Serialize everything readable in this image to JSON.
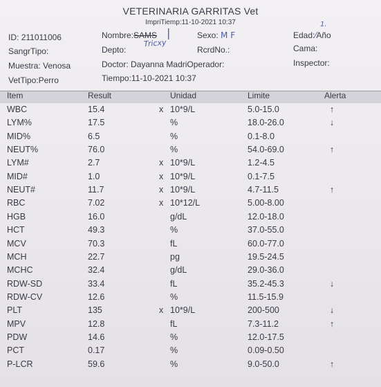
{
  "header": {
    "title": "VETERINARIA GARRITAS  Vet",
    "print_time": "ImpriTiemp:11-10-2021 10:37"
  },
  "patient": {
    "id_label": "ID:",
    "id_value": "211011006",
    "name_label": "Nombre:",
    "name_value": "SAMS",
    "name_handwritten": "Tricxy",
    "sex_label": "Sexo:",
    "sex_value": "M F",
    "age_label": "Edad:",
    "age_value": "Año",
    "age_handwritten": "1.",
    "blood_type_label": "SangrTipo:",
    "dept_label": "Depto:",
    "record_label": "RcrdNo.:",
    "bed_label": "Cama:",
    "sample_label": "Muestra:",
    "sample_value": "Venosa",
    "doctor_label": "Doctor:",
    "doctor_value": "Dayanna MadriOperador:",
    "inspector_label": "Inspector:",
    "vet_type_label": "VetTipo:",
    "vet_type_value": "Perro",
    "time_label": "Tiempo:",
    "time_value": "11-10-2021 10:37"
  },
  "table": {
    "columns": {
      "item": "Item",
      "result": "Result",
      "unit": "Unidad",
      "limit": "Limite",
      "alert": "Alerta"
    },
    "rows": [
      {
        "item": "WBC",
        "result": "15.4",
        "x": "x",
        "unit": "10*9/L",
        "limit": "5.0-15.0",
        "alert": "↑"
      },
      {
        "item": "LYM%",
        "result": "17.5",
        "x": "",
        "unit": "%",
        "limit": "18.0-26.0",
        "alert": "↓"
      },
      {
        "item": "MID%",
        "result": "6.5",
        "x": "",
        "unit": "%",
        "limit": "0.1-8.0",
        "alert": ""
      },
      {
        "item": "NEUT%",
        "result": "76.0",
        "x": "",
        "unit": "%",
        "limit": "54.0-69.0",
        "alert": "↑"
      },
      {
        "item": "LYM#",
        "result": "2.7",
        "x": "x",
        "unit": "10*9/L",
        "limit": "1.2-4.5",
        "alert": ""
      },
      {
        "item": "MID#",
        "result": "1.0",
        "x": "x",
        "unit": "10*9/L",
        "limit": "0.1-7.5",
        "alert": ""
      },
      {
        "item": "NEUT#",
        "result": "11.7",
        "x": "x",
        "unit": "10*9/L",
        "limit": "4.7-11.5",
        "alert": "↑"
      },
      {
        "item": "RBC",
        "result": "7.02",
        "x": "x",
        "unit": "10*12/L",
        "limit": "5.00-8.00",
        "alert": ""
      },
      {
        "item": "HGB",
        "result": "16.0",
        "x": "",
        "unit": "g/dL",
        "limit": "12.0-18.0",
        "alert": ""
      },
      {
        "item": "HCT",
        "result": "49.3",
        "x": "",
        "unit": "%",
        "limit": "37.0-55.0",
        "alert": ""
      },
      {
        "item": "MCV",
        "result": "70.3",
        "x": "",
        "unit": "fL",
        "limit": "60.0-77.0",
        "alert": ""
      },
      {
        "item": "MCH",
        "result": "22.7",
        "x": "",
        "unit": "pg",
        "limit": "19.5-24.5",
        "alert": ""
      },
      {
        "item": "MCHC",
        "result": "32.4",
        "x": "",
        "unit": "g/dL",
        "limit": "29.0-36.0",
        "alert": ""
      },
      {
        "item": "RDW-SD",
        "result": "33.4",
        "x": "",
        "unit": "fL",
        "limit": "35.2-45.3",
        "alert": "↓"
      },
      {
        "item": "RDW-CV",
        "result": "12.6",
        "x": "",
        "unit": "%",
        "limit": "11.5-15.9",
        "alert": ""
      },
      {
        "item": "PLT",
        "result": "135",
        "x": "x",
        "unit": "10*9/L",
        "limit": "200-500",
        "alert": "↓"
      },
      {
        "item": "MPV",
        "result": "12.8",
        "x": "",
        "unit": "fL",
        "limit": "7.3-11.2",
        "alert": "↑"
      },
      {
        "item": "PDW",
        "result": "14.6",
        "x": "",
        "unit": "%",
        "limit": "12.0-17.5",
        "alert": ""
      },
      {
        "item": "PCT",
        "result": "0.17",
        "x": "",
        "unit": "%",
        "limit": "0.09-0.50",
        "alert": ""
      },
      {
        "item": "P-LCR",
        "result": "59.6",
        "x": "",
        "unit": "%",
        "limit": "9.0-50.0",
        "alert": "↑"
      }
    ]
  }
}
